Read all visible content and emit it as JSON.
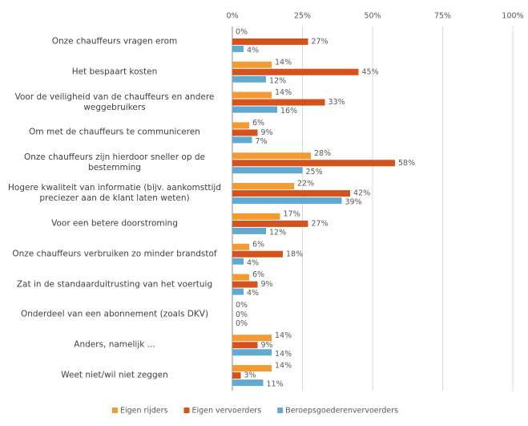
{
  "chart_data": {
    "type": "hbar",
    "categories": [
      "Onze chauffeurs vragen erom",
      "Het bespaart kosten",
      "Voor de veiligheid van de chauffeurs en andere weggebruikers",
      "Om met de chauffeurs te communiceren",
      "Onze chauffeurs zijn hierdoor sneller op de bestemming",
      "Hogere kwaliteit van informatie (bijv. aankomsttijd preciezer aan de klant laten weten)",
      "Voor een betere doorstroming",
      "Onze chauffeurs verbruiken zo minder brandstof",
      "Zat in de standaarduitrusting van het voertuig",
      "Onderdeel van een abonnement (zoals DKV)",
      "Anders, namelijk ...",
      "Weet niet/wil niet zeggen"
    ],
    "series": [
      {
        "name": "Eigen rijders",
        "color": "#f39a32",
        "values": [
          0,
          14,
          14,
          6,
          28,
          22,
          17,
          6,
          6,
          0,
          14,
          14
        ],
        "value_labels": [
          "0%",
          "14%",
          "14%",
          "6%",
          "28%",
          "22%",
          "17%",
          "6%",
          "6%",
          "0%",
          "14%",
          "14%"
        ]
      },
      {
        "name": "Eigen vervoerders",
        "color": "#d4531c",
        "values": [
          27,
          45,
          33,
          9,
          58,
          42,
          27,
          18,
          9,
          0,
          9,
          3
        ],
        "value_labels": [
          "27%",
          "45%",
          "33%",
          "9%",
          "58%",
          "42%",
          "27%",
          "18%",
          "9%",
          "0%",
          "9%",
          "3%"
        ]
      },
      {
        "name": "Beroepsgoederenvervoerders",
        "color": "#62a9d2",
        "values": [
          4,
          12,
          16,
          7,
          25,
          39,
          12,
          4,
          4,
          0,
          14,
          11
        ],
        "value_labels": [
          "4%",
          "12%",
          "16%",
          "7%",
          "25%",
          "39%",
          "12%",
          "4%",
          "4%",
          "0%",
          "14%",
          "11%"
        ]
      }
    ],
    "xlim": [
      0,
      100
    ],
    "xticks": [
      {
        "value": 0,
        "label": "0%"
      },
      {
        "value": 25,
        "label": "25%"
      },
      {
        "value": 50,
        "label": "50%"
      },
      {
        "value": 75,
        "label": "75%"
      },
      {
        "value": 100,
        "label": "100%"
      }
    ],
    "grid": true,
    "legend": "bottom"
  }
}
